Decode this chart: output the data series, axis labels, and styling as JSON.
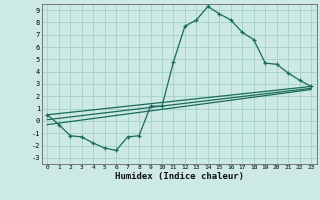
{
  "xlabel": "Humidex (Indice chaleur)",
  "bg_color": "#cce9e4",
  "grid_color": "#a8d4ce",
  "line_color": "#1a6b5a",
  "xlim": [
    -0.5,
    23.5
  ],
  "ylim": [
    -3.5,
    9.5
  ],
  "xticks": [
    0,
    1,
    2,
    3,
    4,
    5,
    6,
    7,
    8,
    9,
    10,
    11,
    12,
    13,
    14,
    15,
    16,
    17,
    18,
    19,
    20,
    21,
    22,
    23
  ],
  "yticks": [
    -3,
    -2,
    -1,
    0,
    1,
    2,
    3,
    4,
    5,
    6,
    7,
    8,
    9
  ],
  "curve1_x": [
    0,
    1,
    2,
    3,
    4,
    5,
    6,
    7,
    8,
    9,
    10,
    11,
    12,
    13,
    14,
    15,
    16,
    17,
    18,
    19,
    20,
    21,
    22,
    23
  ],
  "curve1_y": [
    0.5,
    -0.3,
    -1.2,
    -1.3,
    -1.8,
    -2.2,
    -2.4,
    -1.3,
    -1.2,
    1.2,
    1.2,
    4.8,
    7.7,
    8.2,
    9.3,
    8.7,
    8.2,
    7.2,
    6.6,
    4.7,
    4.6,
    3.9,
    3.3,
    2.8
  ],
  "line2_x": [
    0,
    23
  ],
  "line2_y": [
    0.5,
    2.8
  ],
  "line3_x": [
    0,
    23
  ],
  "line3_y": [
    -0.3,
    2.55
  ],
  "line4_x": [
    0,
    23
  ],
  "line4_y": [
    0.1,
    2.65
  ]
}
